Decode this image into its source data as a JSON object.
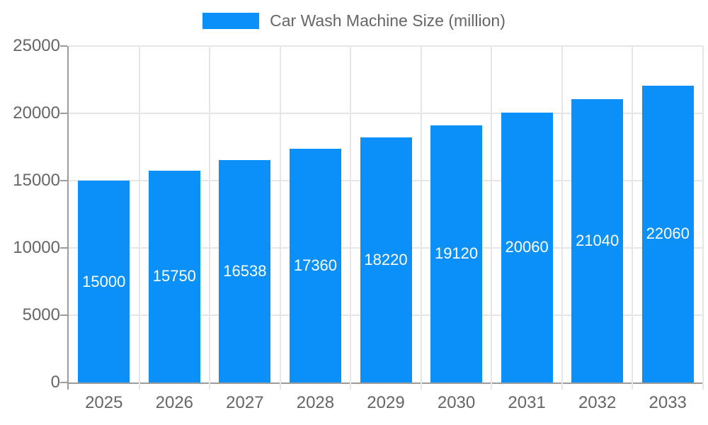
{
  "chart_data": {
    "type": "bar",
    "title": "Car Wash Machine Size (million)",
    "categories": [
      "2025",
      "2026",
      "2027",
      "2028",
      "2029",
      "2030",
      "2031",
      "2032",
      "2033"
    ],
    "values": [
      15000,
      15750,
      16538,
      17360,
      18220,
      19120,
      20060,
      21040,
      22060
    ],
    "series": [
      {
        "name": "Car Wash Machine Size (million)",
        "values": [
          15000,
          15750,
          16538,
          17360,
          18220,
          19120,
          20060,
          21040,
          22060
        ]
      }
    ],
    "xlabel": "",
    "ylabel": "",
    "ylim": [
      0,
      25000
    ],
    "yticks": [
      0,
      5000,
      10000,
      15000,
      20000,
      25000
    ],
    "grid": true,
    "legend_position": "top-center",
    "bar_labels_visible": true,
    "bar_label_position": "center-inside",
    "colors": {
      "bar": "#0A90F8",
      "grid": "#E6E6E6",
      "axis": "#9B9B9B",
      "text": "#666666",
      "bar_label": "#FFFFFF",
      "background": "#FFFFFF"
    }
  }
}
